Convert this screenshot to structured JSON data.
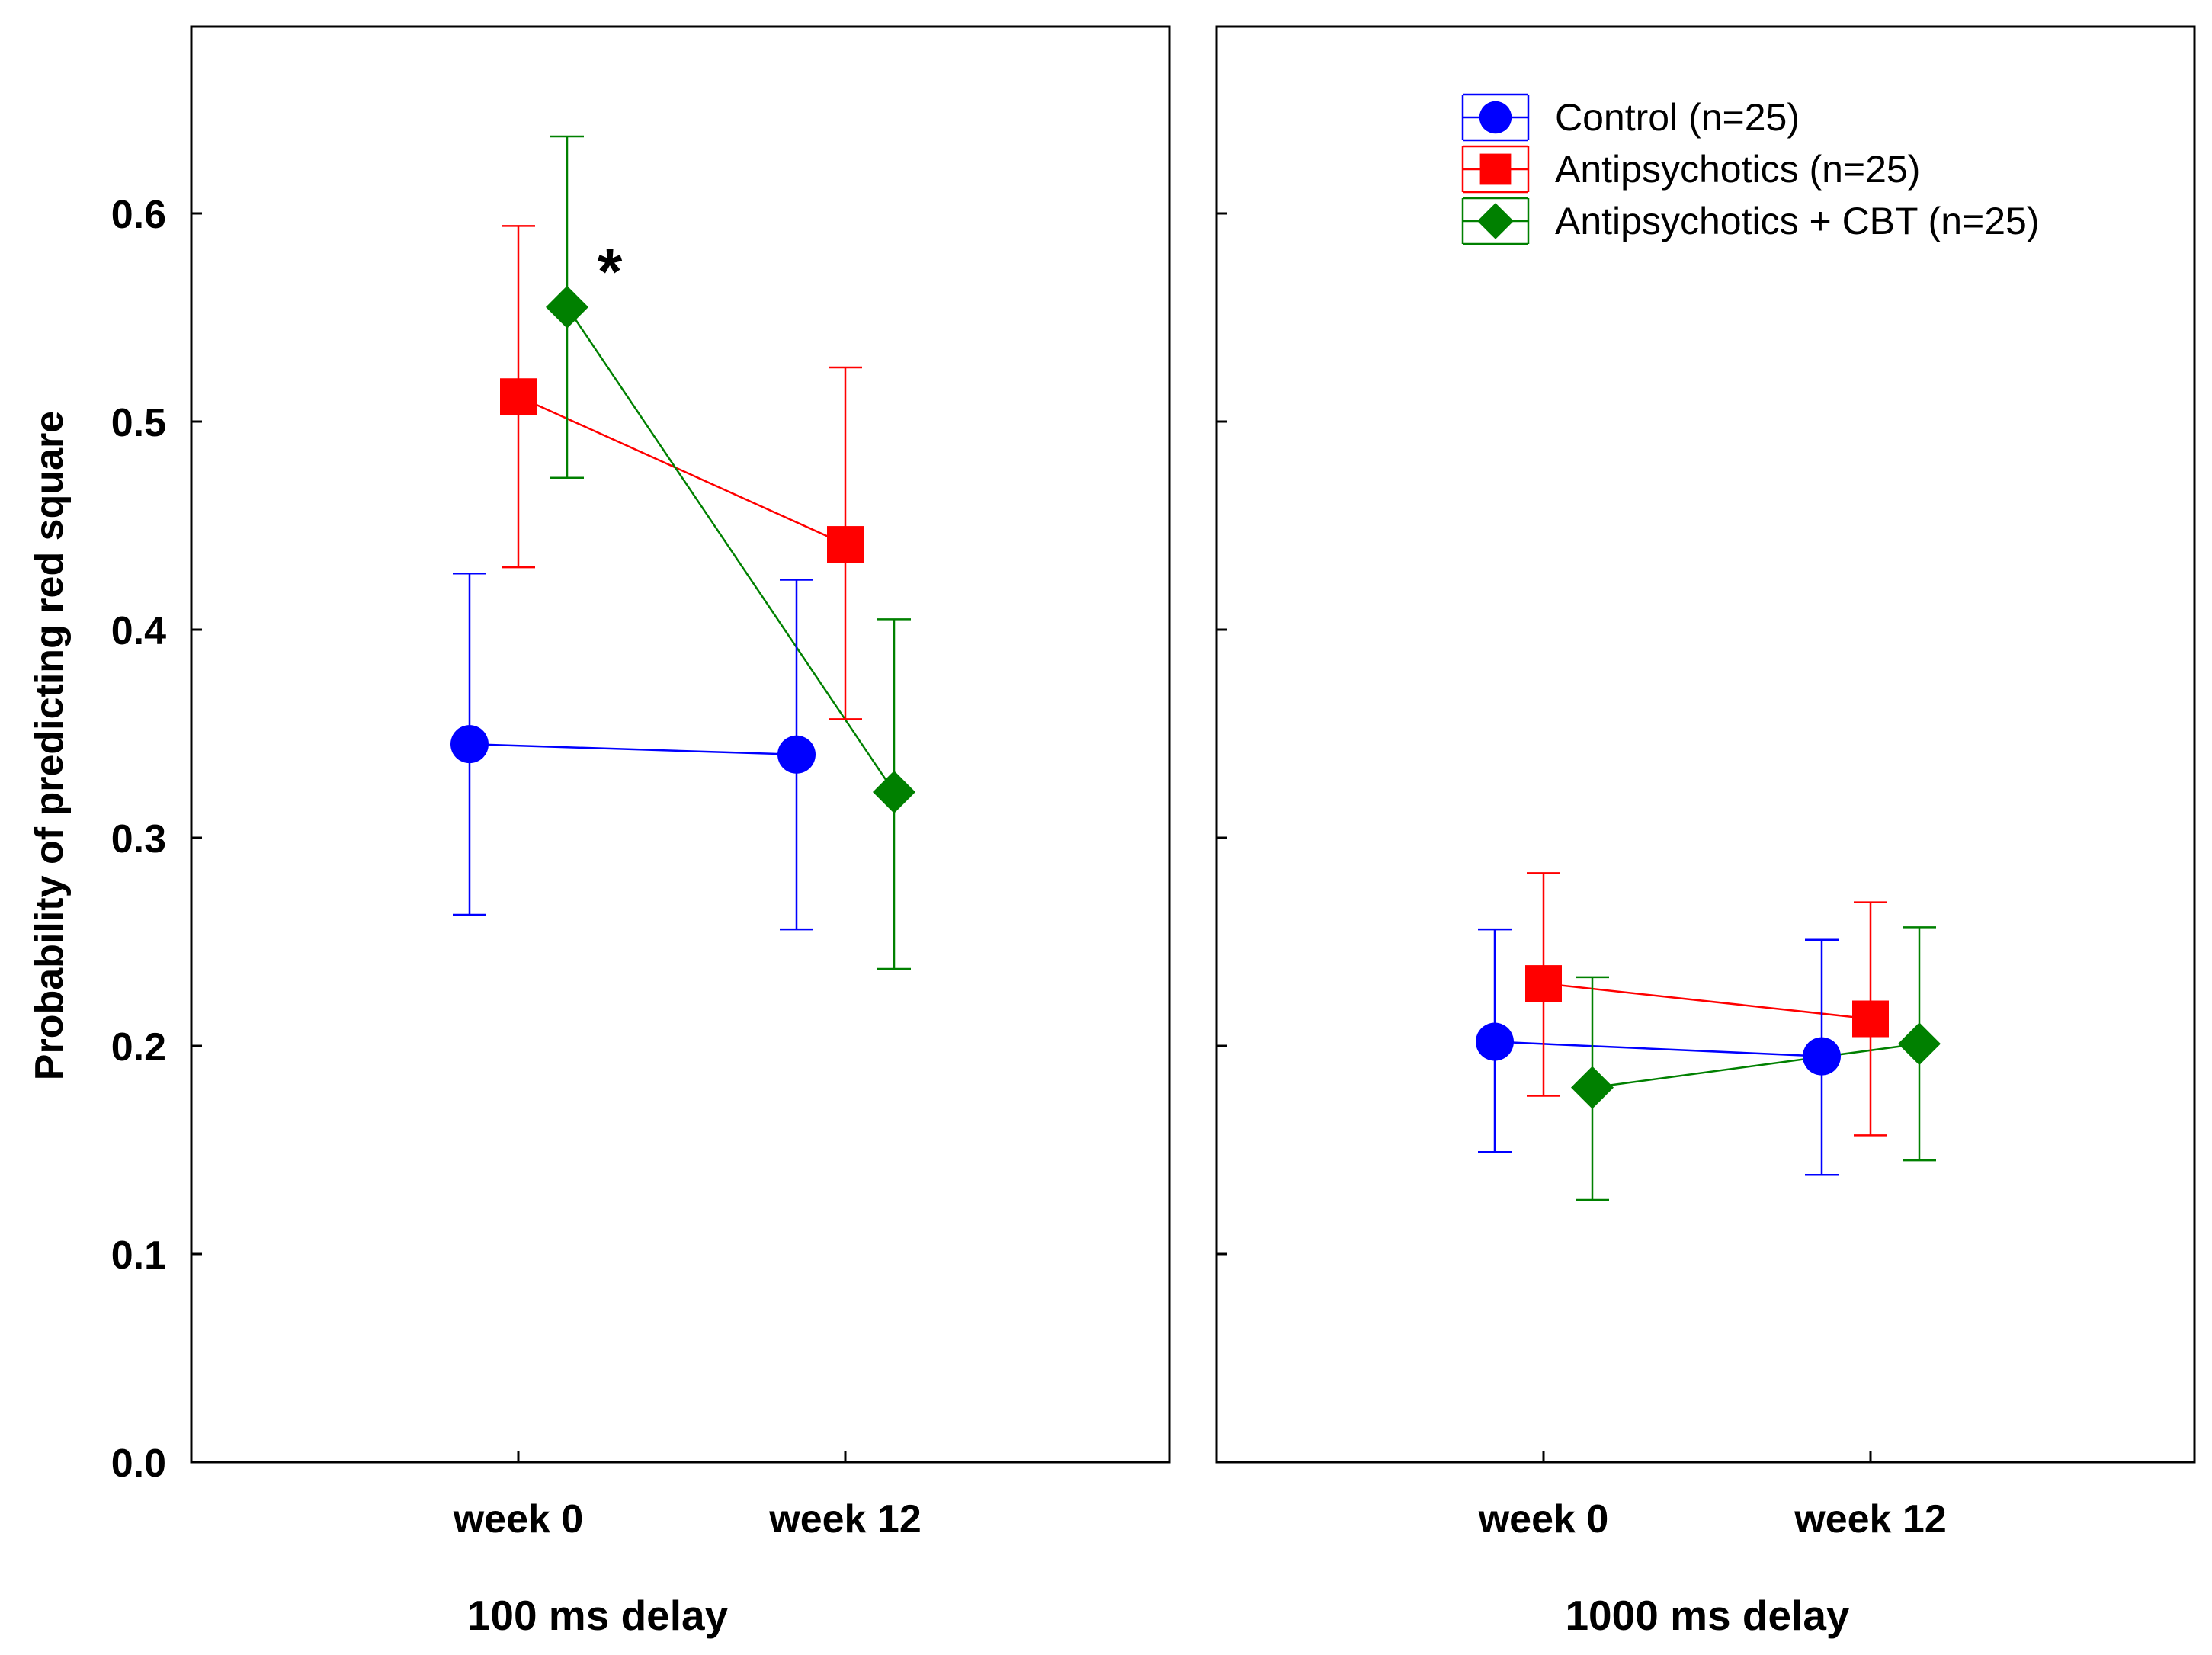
{
  "chart_data": {
    "type": "line",
    "ylabel": "Probability of predicting red square",
    "ylim": [
      0.0,
      0.7
    ],
    "yticks": [
      "0.0",
      "0.1",
      "0.2",
      "0.3",
      "0.4",
      "0.5",
      "0.6"
    ],
    "categories": [
      "week 0",
      "week 12"
    ],
    "legend": {
      "position": "top-right of right panel",
      "entries": [
        "Control (n=25)",
        "Antipsychotics (n=25)",
        "Antipsychotics + CBT (n=25)"
      ]
    },
    "series_colors": {
      "Control (n=25)": "#0000ff",
      "Antipsychotics (n=25)": "#ff0000",
      "Antipsychotics + CBT (n=25)": "#008000"
    },
    "series_markers": {
      "Control (n=25)": "circle",
      "Antipsychotics (n=25)": "square",
      "Antipsychotics + CBT (n=25)": "diamond"
    },
    "panels": [
      {
        "title": "100 ms delay",
        "annotation": "*",
        "series": [
          {
            "name": "Control (n=25)",
            "values": [
              0.345,
              0.34
            ],
            "lower": [
              0.263,
              0.256
            ],
            "upper": [
              0.427,
              0.424
            ]
          },
          {
            "name": "Antipsychotics (n=25)",
            "values": [
              0.512,
              0.441
            ],
            "lower": [
              0.43,
              0.357
            ],
            "upper": [
              0.594,
              0.526
            ]
          },
          {
            "name": "Antipsychotics + CBT (n=25)",
            "values": [
              0.555,
              0.322
            ],
            "lower": [
              0.473,
              0.237
            ],
            "upper": [
              0.637,
              0.405
            ]
          }
        ]
      },
      {
        "title": "1000 ms delay",
        "series": [
          {
            "name": "Control (n=25)",
            "values": [
              0.202,
              0.195
            ],
            "lower": [
              0.149,
              0.138
            ],
            "upper": [
              0.256,
              0.251
            ]
          },
          {
            "name": "Antipsychotics (n=25)",
            "values": [
              0.23,
              0.213
            ],
            "lower": [
              0.176,
              0.157
            ],
            "upper": [
              0.283,
              0.269
            ]
          },
          {
            "name": "Antipsychotics + CBT (n=25)",
            "values": [
              0.18,
              0.201
            ],
            "lower": [
              0.126,
              0.145
            ],
            "upper": [
              0.233,
              0.257
            ]
          }
        ]
      }
    ]
  }
}
